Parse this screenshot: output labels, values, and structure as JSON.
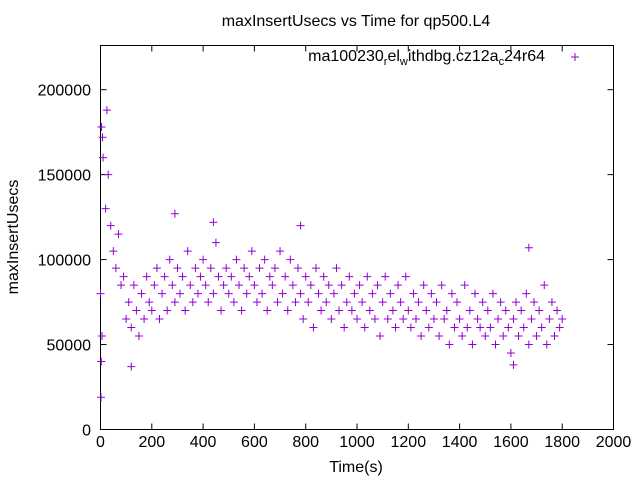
{
  "chart_data": {
    "type": "scatter",
    "title": "maxInsertUsecs vs Time for qp500.L4",
    "xlabel": "Time(s)",
    "ylabel": "maxInsertUsecs",
    "xlim": [
      0,
      2000
    ],
    "ylim": [
      0,
      226000
    ],
    "xticks": [
      0,
      200,
      400,
      600,
      800,
      1000,
      1200,
      1400,
      1600,
      1800,
      2000
    ],
    "yticks": [
      0,
      50000,
      100000,
      150000,
      200000
    ],
    "grid": false,
    "legend_position": "top-right",
    "series": [
      {
        "name": "ma100230_rel_withdbg.cz12a_c24r64",
        "color": "#9400d3",
        "marker": "plus",
        "x_start": 0,
        "x_step": 10,
        "y": [
          80000,
          160000,
          130000,
          150000,
          120000,
          105000,
          95000,
          115000,
          85000,
          90000,
          65000,
          75000,
          60000,
          85000,
          70000,
          55000,
          80000,
          65000,
          90000,
          75000,
          70000,
          85000,
          95000,
          65000,
          80000,
          90000,
          70000,
          100000,
          85000,
          75000,
          95000,
          80000,
          90000,
          70000,
          105000,
          85000,
          75000,
          95000,
          80000,
          90000,
          100000,
          85000,
          75000,
          95000,
          80000,
          110000,
          90000,
          70000,
          85000,
          95000,
          80000,
          90000,
          75000,
          100000,
          85000,
          70000,
          95000,
          80000,
          90000,
          105000,
          85000,
          75000,
          95000,
          80000,
          100000,
          70000,
          90000,
          85000,
          95000,
          75000,
          105000,
          80000,
          90000,
          70000,
          100000,
          85000,
          75000,
          95000,
          80000,
          65000,
          90000,
          75000,
          85000,
          60000,
          95000,
          80000,
          70000,
          90000,
          75000,
          85000,
          65000,
          80000,
          95000,
          70000,
          85000,
          60000,
          75000,
          90000,
          70000,
          80000,
          65000,
          85000,
          75000,
          60000,
          90000,
          70000,
          80000,
          65000,
          85000,
          55000,
          75000,
          90000,
          65000,
          80000,
          70000,
          60000,
          85000,
          75000,
          65000,
          90000,
          70000,
          60000,
          80000,
          65000,
          75000,
          55000,
          85000,
          70000,
          60000,
          80000,
          65000,
          75000,
          55000,
          85000,
          65000,
          70000,
          50000,
          80000,
          60000,
          75000,
          65000,
          55000,
          85000,
          60000,
          70000,
          50000,
          80000,
          65000,
          60000,
          75000,
          55000,
          70000,
          60000,
          80000,
          50000,
          65000,
          75000,
          55000,
          70000,
          60000,
          45000,
          65000,
          75000,
          55000,
          70000,
          60000,
          80000,
          50000,
          65000,
          75000,
          55000,
          70000,
          60000,
          85000,
          50000,
          65000,
          75000,
          55000,
          70000,
          60000,
          65000
        ],
        "extra_points": [
          [
            2,
            19000
          ],
          [
            4,
            178000
          ],
          [
            8,
            172000
          ],
          [
            25,
            188000
          ],
          [
            3,
            40000
          ],
          [
            6,
            55000
          ],
          [
            120,
            37000
          ],
          [
            290,
            127000
          ],
          [
            440,
            122000
          ],
          [
            780,
            120000
          ],
          [
            1670,
            107000
          ],
          [
            1610,
            38000
          ]
        ]
      }
    ]
  }
}
